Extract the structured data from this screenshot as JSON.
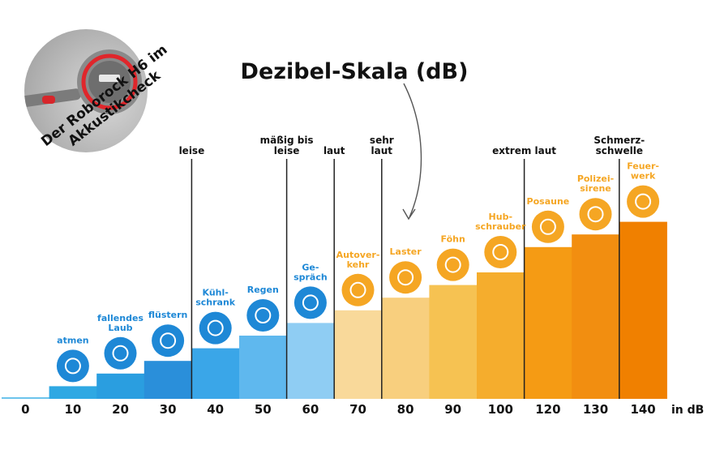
{
  "caption": {
    "line1": "Der Roborock H6 im",
    "line2": "Akkustikcheck"
  },
  "chart_data": {
    "type": "bar",
    "title": "Dezibel-Skala (dB)",
    "unit_label": "in dB",
    "x": [
      0,
      10,
      20,
      30,
      40,
      50,
      60,
      70,
      80,
      90,
      100,
      120,
      130,
      140
    ],
    "categories": [
      "",
      "atmen",
      "fallendes Laub",
      "flüstern",
      "Kühlschrank",
      "Regen",
      "Gespräch",
      "Autoverkehr",
      "Laster",
      "Föhn",
      "Hubschrauber",
      "Posaune",
      "Polizeisirene",
      "Feuerwerk"
    ],
    "category_lines": [
      [],
      [
        "atmen"
      ],
      [
        "fallendes",
        "Laub"
      ],
      [
        "flüstern"
      ],
      [
        "Kühl-",
        "schrank"
      ],
      [
        "Regen"
      ],
      [
        "Ge-",
        "spräch"
      ],
      [
        "Autover-",
        "kehr"
      ],
      [
        "Laster"
      ],
      [
        "Föhn"
      ],
      [
        "Hub-",
        "schrauber"
      ],
      [
        "Posaune"
      ],
      [
        "Polizei-",
        "sirene"
      ],
      [
        "Feuer-",
        "werk"
      ]
    ],
    "icons": [
      "",
      "lungs-icon",
      "leaves-icon",
      "whisper-icon",
      "fridge-icon",
      "rain-cloud-icon",
      "speech-bubbles-icon",
      "car-icon",
      "truck-icon",
      "hair-dryer-icon",
      "helicopter-icon",
      "trombone-icon",
      "police-car-icon",
      "firework-icon"
    ],
    "values": [
      0,
      10,
      20,
      30,
      40,
      50,
      60,
      70,
      80,
      90,
      100,
      120,
      130,
      140
    ],
    "colors": [
      "#6cc4ec",
      "#2fa8e3",
      "#2a9ee0",
      "#2a8fda",
      "#3aa6e8",
      "#5fb8ee",
      "#8fcdf3",
      "#f9d99a",
      "#f8cf7e",
      "#f6c252",
      "#f5ad2d",
      "#f59b14",
      "#f28e10",
      "#f08000"
    ],
    "zones": [
      {
        "lines": [
          "leise"
        ],
        "boundary_index": 4
      },
      {
        "lines": [
          "mäßig bis",
          "leise"
        ],
        "boundary_index": 6
      },
      {
        "lines": [
          "laut"
        ],
        "boundary_index": 7
      },
      {
        "lines": [
          "sehr",
          "laut"
        ],
        "boundary_index": 8
      },
      {
        "lines": [
          "extrem laut"
        ],
        "boundary_index": 11
      },
      {
        "lines": [
          "Schmerz-",
          "schwelle"
        ],
        "boundary_index": 13
      }
    ]
  }
}
